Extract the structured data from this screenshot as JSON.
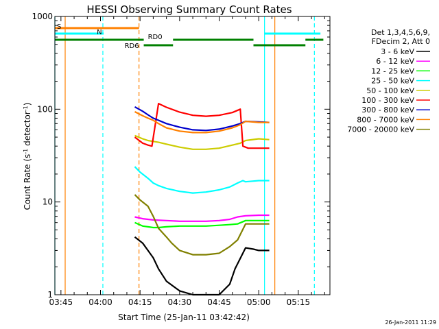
{
  "chart_data": {
    "type": "line",
    "title": "HESSI Observing Summary Count Rates",
    "xlabel": "Start Time (25-Jan-11 03:42:42)",
    "ylabel": "Count Rate (s",
    "ylabel_sup1": "-1",
    "ylabel_mid": " detector",
    "ylabel_sup2": "-1",
    "ylabel_end": ")",
    "yscale": "log",
    "ylim": [
      1,
      1000
    ],
    "xlim_minutes": [
      222.7,
      327.0
    ],
    "x_tick_labels": [
      "03:45",
      "04:00",
      "04:15",
      "04:30",
      "04:45",
      "05:00",
      "05:15"
    ],
    "x_tick_minutes": [
      225,
      240,
      255,
      270,
      285,
      300,
      315
    ],
    "y_tick_labels": [
      "1",
      "10",
      "100",
      "1000"
    ],
    "y_tick_values": [
      1,
      10,
      100,
      1000
    ],
    "timestamp": "26-Jan-2011 11:29",
    "legend": {
      "header_line1": "Det 1,3,4,5,6,9,",
      "header_line2": "FDecim 2, Att 0"
    },
    "series": [
      {
        "name": "3 - 6 keV",
        "color": "#000000",
        "x": [
          253,
          256,
          258,
          260,
          262,
          265,
          270,
          275,
          280,
          285,
          289,
          291,
          295,
          298,
          300,
          302,
          304
        ],
        "y": [
          4.2,
          3.6,
          3.0,
          2.5,
          1.9,
          1.4,
          1.1,
          1.0,
          1.0,
          1.0,
          1.3,
          1.9,
          3.2,
          3.1,
          3.0,
          3.0,
          3.0
        ]
      },
      {
        "name": "6 - 12 keV",
        "color": "#ff00ff",
        "x": [
          253,
          256,
          258,
          260,
          265,
          270,
          275,
          280,
          285,
          289,
          292,
          295,
          300,
          304
        ],
        "y": [
          6.9,
          6.6,
          6.5,
          6.4,
          6.3,
          6.2,
          6.2,
          6.2,
          6.3,
          6.5,
          6.9,
          7.1,
          7.2,
          7.2
        ]
      },
      {
        "name": "12 - 25 keV",
        "color": "#00ff00",
        "x": [
          253,
          256,
          258,
          260,
          262,
          265,
          270,
          275,
          280,
          285,
          289,
          292,
          295,
          300,
          304
        ],
        "y": [
          6.0,
          5.5,
          5.4,
          5.3,
          5.3,
          5.4,
          5.5,
          5.5,
          5.5,
          5.6,
          5.7,
          5.8,
          6.3,
          6.3,
          6.3
        ]
      },
      {
        "name": "25 - 50 keV",
        "color": "#00ffff",
        "x": [
          253,
          255,
          258,
          260,
          262,
          265,
          270,
          275,
          280,
          285,
          289,
          292,
          294,
          295,
          298,
          300,
          304
        ],
        "y": [
          24,
          21,
          18,
          16,
          15,
          14,
          13,
          12.5,
          12.8,
          13.5,
          14.5,
          16,
          17,
          16.5,
          16.8,
          17,
          17
        ]
      },
      {
        "name": "50 - 100 keV",
        "color": "#cccc00",
        "x": [
          253,
          256,
          258,
          260,
          262,
          265,
          270,
          275,
          280,
          285,
          290,
          293,
          295,
          300,
          304
        ],
        "y": [
          52,
          48,
          46,
          45,
          44,
          42,
          39,
          37,
          37,
          38,
          41,
          43,
          46,
          48,
          47
        ]
      },
      {
        "name": "100 - 300 keV",
        "color": "#ff0000",
        "x": [
          253,
          256,
          258,
          259.5,
          262,
          265,
          270,
          275,
          280,
          285,
          290,
          293,
          294,
          296,
          300,
          304
        ],
        "y": [
          50,
          43,
          41,
          40,
          115,
          105,
          93,
          86,
          84,
          86,
          92,
          100,
          40,
          38,
          38,
          38
        ]
      },
      {
        "name": "300 - 800 keV",
        "color": "#0000cc",
        "x": [
          253,
          256,
          258,
          260,
          262,
          265,
          270,
          275,
          280,
          285,
          290,
          293,
          295,
          300,
          304
        ],
        "y": [
          106,
          95,
          87,
          80,
          76,
          70,
          64,
          60,
          59,
          61,
          66,
          70,
          74,
          73,
          72
        ]
      },
      {
        "name": "800 - 7000 keV",
        "color": "#ff8000",
        "x": [
          253,
          256,
          258,
          260,
          262,
          265,
          270,
          275,
          280,
          285,
          290,
          293,
          295,
          300,
          304
        ],
        "y": [
          94,
          85,
          80,
          76,
          70,
          63,
          58,
          56,
          56,
          58,
          63,
          68,
          74,
          72,
          72
        ]
      },
      {
        "name": "7000 - 20000 keV",
        "color": "#808000",
        "x": [
          253,
          255,
          258,
          260,
          262,
          265,
          267,
          270,
          275,
          280,
          285,
          289,
          292,
          295,
          300,
          304
        ],
        "y": [
          12,
          10.5,
          9,
          7,
          5.2,
          4.2,
          3.6,
          3.0,
          2.7,
          2.7,
          2.8,
          3.3,
          3.9,
          5.8,
          5.8,
          5.8
        ]
      }
    ],
    "vertical_lines": [
      {
        "minute": 222.7,
        "color": "#00ffff",
        "dashed": false
      },
      {
        "minute": 226.6,
        "color": "#ff8000",
        "dashed": false
      },
      {
        "minute": 240.9,
        "color": "#00ffff",
        "dashed": true
      },
      {
        "minute": 254.6,
        "color": "#ff8000",
        "dashed": true
      },
      {
        "minute": 302.2,
        "color": "#00ffff",
        "dashed": false
      },
      {
        "minute": 306.1,
        "color": "#ff8000",
        "dashed": false
      },
      {
        "minute": 321.1,
        "color": "#00ffff",
        "dashed": true
      }
    ],
    "flag_bars": [
      {
        "label": "S",
        "color": "#ff8000",
        "level": 1,
        "segments": [
          [
            222.7,
            254.6
          ]
        ]
      },
      {
        "label": "N",
        "color": "#00ffff",
        "level": 2,
        "segments": [
          [
            222.7,
            241.2
          ],
          [
            302.2,
            323.4
          ]
        ]
      },
      {
        "label": "RD0",
        "color": "#008000",
        "level": 3,
        "segments": [
          [
            222.7,
            256.4
          ],
          [
            267.5,
            298.0
          ],
          [
            317.7,
            324.5
          ]
        ]
      },
      {
        "label": "RD6",
        "color": "#008000",
        "level": 4,
        "segments": [
          [
            256.4,
            267.5
          ],
          [
            298.0,
            317.7
          ]
        ]
      }
    ]
  }
}
